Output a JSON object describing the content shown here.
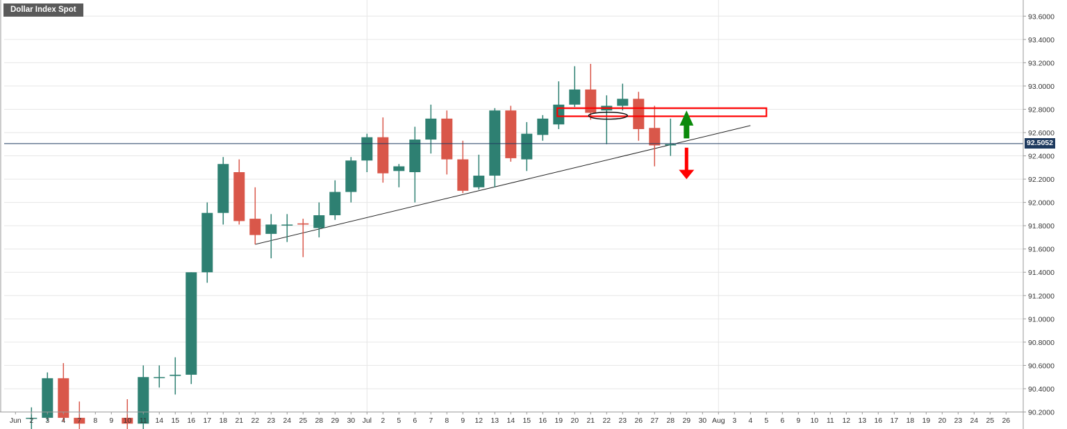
{
  "title": "Dollar Index Spot",
  "current_price_label": "92.5052",
  "colors": {
    "up": "#2e8072",
    "down": "#d9574a",
    "grid": "#e6e6e6",
    "current_line": "#1e3a5f",
    "zone": "#ff0000",
    "arrow_up": "#0a8a0a",
    "arrow_down": "#ff0000",
    "trendline": "#222222"
  },
  "chart_data": {
    "type": "candlestick",
    "title": "Dollar Index Spot",
    "ylim": [
      90.2,
      93.7
    ],
    "y_ticks": [
      "90.2000",
      "90.4000",
      "90.6000",
      "90.8000",
      "91.0000",
      "91.2000",
      "91.4000",
      "91.6000",
      "91.8000",
      "92.0000",
      "92.2000",
      "92.4000",
      "92.6000",
      "92.8000",
      "93.0000",
      "93.2000",
      "93.4000",
      "93.6000"
    ],
    "x_labels": [
      "Jun",
      "2",
      "3",
      "4",
      "7",
      "8",
      "9",
      "10",
      "11",
      "14",
      "15",
      "16",
      "17",
      "18",
      "21",
      "22",
      "23",
      "24",
      "25",
      "28",
      "29",
      "30",
      "Jul",
      "2",
      "5",
      "6",
      "7",
      "8",
      "9",
      "12",
      "13",
      "14",
      "15",
      "16",
      "19",
      "20",
      "21",
      "22",
      "23",
      "26",
      "27",
      "28",
      "29",
      "30",
      "Aug",
      "3",
      "4",
      "5",
      "6",
      "9",
      "10",
      "11",
      "12",
      "13",
      "16",
      "17",
      "18",
      "19",
      "20",
      "23",
      "24",
      "25",
      "26"
    ],
    "candles": [
      {
        "label": "2",
        "open": 90.15,
        "high": 90.24,
        "low": 90.05,
        "close": 90.15
      },
      {
        "label": "3",
        "open": 90.15,
        "high": 90.54,
        "low": 90.12,
        "close": 90.49
      },
      {
        "label": "4",
        "open": 90.49,
        "high": 90.62,
        "low": 90.12,
        "close": 90.15
      },
      {
        "label": "7",
        "open": 90.15,
        "high": 90.29,
        "low": 90.05,
        "close": 90.1
      },
      {
        "label": "10",
        "open": 90.15,
        "high": 90.31,
        "low": 90.05,
        "close": 90.1
      },
      {
        "label": "11",
        "open": 90.1,
        "high": 90.6,
        "low": 90.05,
        "close": 90.5
      },
      {
        "label": "14",
        "open": 90.5,
        "high": 90.6,
        "low": 90.41,
        "close": 90.5
      },
      {
        "label": "15",
        "open": 90.51,
        "high": 90.67,
        "low": 90.35,
        "close": 90.52
      },
      {
        "label": "16",
        "open": 90.52,
        "high": 91.4,
        "low": 90.44,
        "close": 91.4
      },
      {
        "label": "17",
        "open": 91.4,
        "high": 92.0,
        "low": 91.31,
        "close": 91.91
      },
      {
        "label": "18",
        "open": 91.91,
        "high": 92.39,
        "low": 91.81,
        "close": 92.33
      },
      {
        "label": "21",
        "open": 92.26,
        "high": 92.37,
        "low": 91.81,
        "close": 91.84
      },
      {
        "label": "22",
        "open": 91.86,
        "high": 92.13,
        "low": 91.64,
        "close": 91.72
      },
      {
        "label": "23",
        "open": 91.73,
        "high": 91.9,
        "low": 91.52,
        "close": 91.81
      },
      {
        "label": "24",
        "open": 91.81,
        "high": 91.9,
        "low": 91.66,
        "close": 91.81
      },
      {
        "label": "25",
        "open": 91.82,
        "high": 91.86,
        "low": 91.53,
        "close": 91.81
      },
      {
        "label": "28",
        "open": 91.78,
        "high": 92.0,
        "low": 91.7,
        "close": 91.89
      },
      {
        "label": "29",
        "open": 91.89,
        "high": 92.19,
        "low": 91.85,
        "close": 92.09
      },
      {
        "label": "30",
        "open": 92.09,
        "high": 92.39,
        "low": 92.0,
        "close": 92.36
      },
      {
        "label": "1",
        "open": 92.36,
        "high": 92.59,
        "low": 92.26,
        "close": 92.56
      },
      {
        "label": "2",
        "open": 92.56,
        "high": 92.73,
        "low": 92.17,
        "close": 92.25
      },
      {
        "label": "5",
        "open": 92.27,
        "high": 92.33,
        "low": 92.13,
        "close": 92.31
      },
      {
        "label": "6",
        "open": 92.26,
        "high": 92.65,
        "low": 92.0,
        "close": 92.54
      },
      {
        "label": "7",
        "open": 92.54,
        "high": 92.84,
        "low": 92.42,
        "close": 92.72
      },
      {
        "label": "8",
        "open": 92.72,
        "high": 92.79,
        "low": 92.24,
        "close": 92.37
      },
      {
        "label": "9",
        "open": 92.37,
        "high": 92.53,
        "low": 92.08,
        "close": 92.1
      },
      {
        "label": "12",
        "open": 92.13,
        "high": 92.41,
        "low": 92.11,
        "close": 92.23
      },
      {
        "label": "13",
        "open": 92.23,
        "high": 92.81,
        "low": 92.13,
        "close": 92.79
      },
      {
        "label": "14",
        "open": 92.79,
        "high": 92.83,
        "low": 92.35,
        "close": 92.38
      },
      {
        "label": "15",
        "open": 92.37,
        "high": 92.69,
        "low": 92.27,
        "close": 92.59
      },
      {
        "label": "16",
        "open": 92.58,
        "high": 92.75,
        "low": 92.53,
        "close": 92.72
      },
      {
        "label": "19",
        "open": 92.67,
        "high": 93.04,
        "low": 92.63,
        "close": 92.84
      },
      {
        "label": "20",
        "open": 92.84,
        "high": 93.17,
        "low": 92.82,
        "close": 92.97
      },
      {
        "label": "21",
        "open": 92.97,
        "high": 93.19,
        "low": 92.71,
        "close": 92.77
      },
      {
        "label": "22",
        "open": 92.79,
        "high": 92.92,
        "low": 92.5,
        "close": 92.83
      },
      {
        "label": "23",
        "open": 92.83,
        "high": 93.02,
        "low": 92.79,
        "close": 92.89
      },
      {
        "label": "26",
        "open": 92.89,
        "high": 92.95,
        "low": 92.53,
        "close": 92.63
      },
      {
        "label": "27",
        "open": 92.64,
        "high": 92.83,
        "low": 92.31,
        "close": 92.49
      },
      {
        "label": "28",
        "open": 92.49,
        "high": 92.72,
        "low": 92.4,
        "close": 92.5
      }
    ],
    "trendline": [
      {
        "from": "22",
        "from_value": 91.64
      },
      {
        "to": "4",
        "to_value": 92.66
      }
    ],
    "resistance_zone": {
      "from": "19",
      "to": "5",
      "low": 92.74,
      "high": 92.81
    },
    "current_price": 92.5052,
    "grid": true
  }
}
